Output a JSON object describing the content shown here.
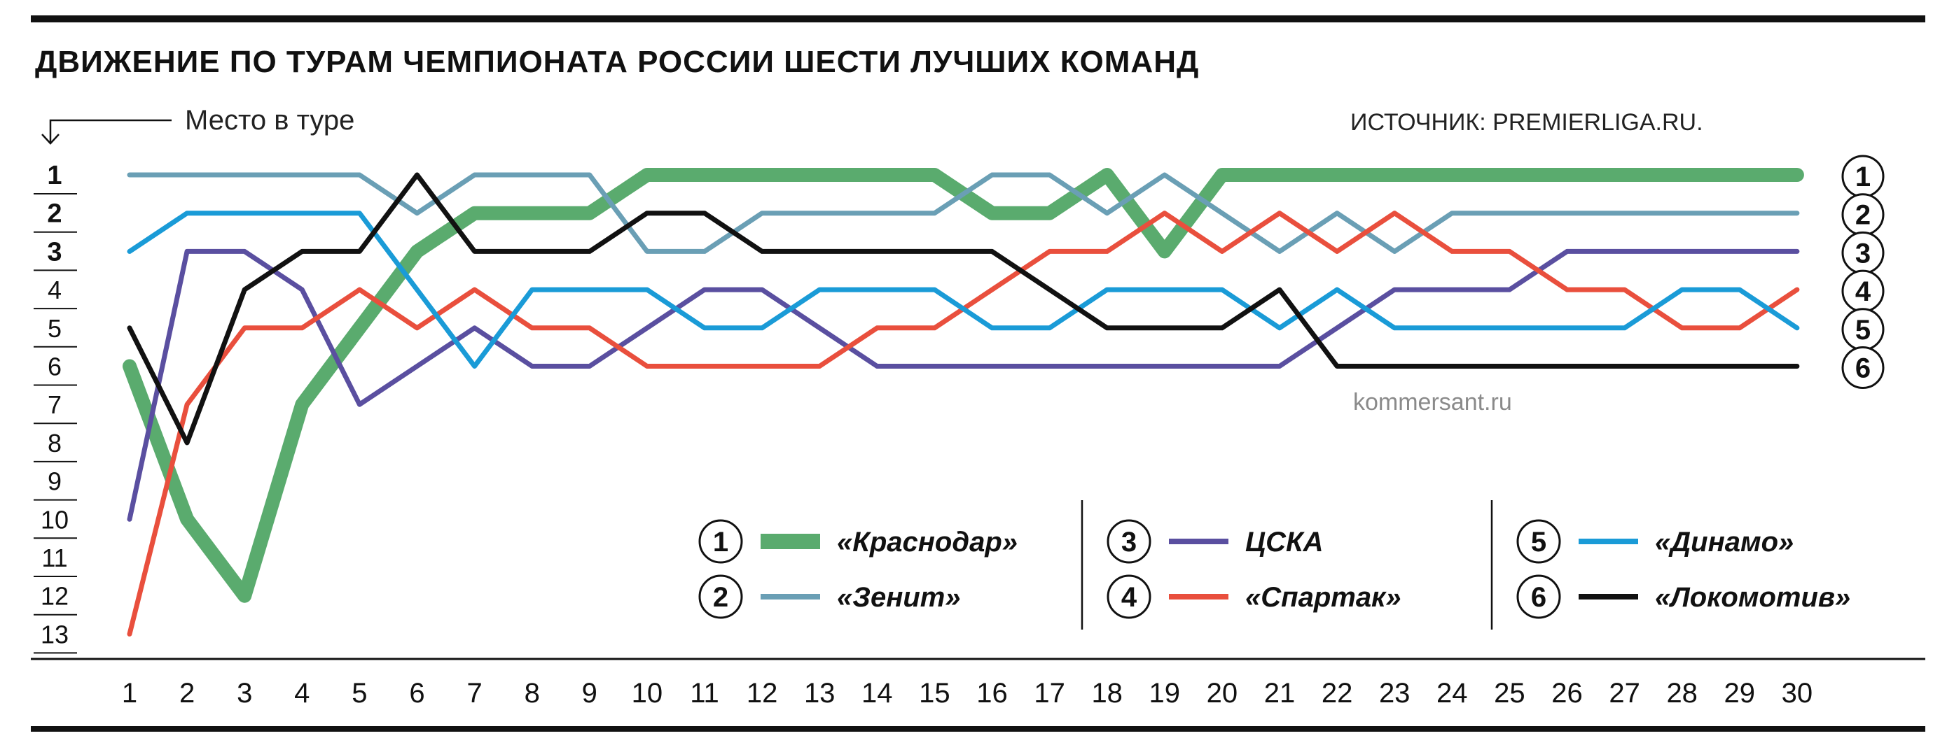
{
  "chart_data": {
    "type": "line",
    "title": "ДВИЖЕНИЕ ПО ТУРАМ ЧЕМПИОНАТА РОССИИ ШЕСТИ ЛУЧШИХ КОМАНД",
    "ylabel": "Место в туре",
    "source": "ИСТОЧНИК: PREMIERLIGA.RU.",
    "watermark": "kommersant.ru",
    "y_reversed": true,
    "ylim": [
      1,
      13
    ],
    "xlim": [
      1,
      30
    ],
    "x": [
      1,
      2,
      3,
      4,
      5,
      6,
      7,
      8,
      9,
      10,
      11,
      12,
      13,
      14,
      15,
      16,
      17,
      18,
      19,
      20,
      21,
      22,
      23,
      24,
      25,
      26,
      27,
      28,
      29,
      30
    ],
    "xticks": [
      "1",
      "2",
      "3",
      "4",
      "5",
      "6",
      "7",
      "8",
      "9",
      "10",
      "11",
      "12",
      "13",
      "14",
      "15",
      "16",
      "17",
      "18",
      "19",
      "20",
      "21",
      "22",
      "23",
      "24",
      "25",
      "26",
      "27",
      "28",
      "29",
      "30"
    ],
    "yticks": [
      "1",
      "2",
      "3",
      "4",
      "5",
      "6",
      "7",
      "8",
      "9",
      "10",
      "11",
      "12",
      "13"
    ],
    "end_labels": [
      "1",
      "2",
      "3",
      "4",
      "5",
      "6"
    ],
    "series": [
      {
        "name": "«Краснодар»",
        "legend_number": "1",
        "color": "#5aab6e",
        "width": 20,
        "values": [
          6,
          10,
          12,
          7,
          5,
          3,
          2,
          2,
          2,
          1,
          1,
          1,
          1,
          1,
          1,
          2,
          2,
          1,
          3,
          1,
          1,
          1,
          1,
          1,
          1,
          1,
          1,
          1,
          1,
          1
        ]
      },
      {
        "name": "«Зенит»",
        "legend_number": "2",
        "color": "#6a9fb5",
        "width": 7,
        "values": [
          1,
          1,
          1,
          1,
          1,
          2,
          1,
          1,
          1,
          3,
          3,
          2,
          2,
          2,
          2,
          1,
          1,
          2,
          1,
          2,
          3,
          2,
          3,
          2,
          2,
          2,
          2,
          2,
          2,
          2
        ]
      },
      {
        "name": "ЦСКА",
        "legend_number": "3",
        "color": "#5a4fa0",
        "width": 7,
        "values": [
          10,
          3,
          3,
          4,
          7,
          6,
          5,
          6,
          6,
          5,
          4,
          4,
          5,
          6,
          6,
          6,
          6,
          6,
          6,
          6,
          6,
          5,
          4,
          4,
          4,
          3,
          3,
          3,
          3,
          3
        ]
      },
      {
        "name": "«Спартак»",
        "legend_number": "4",
        "color": "#e94f3d",
        "width": 7,
        "values": [
          13,
          7,
          5,
          5,
          4,
          5,
          4,
          5,
          5,
          6,
          6,
          6,
          6,
          5,
          5,
          4,
          3,
          3,
          2,
          3,
          2,
          3,
          2,
          3,
          3,
          4,
          4,
          5,
          5,
          4
        ]
      },
      {
        "name": "«Динамо»",
        "legend_number": "5",
        "color": "#1a9bd7",
        "width": 7,
        "values": [
          3,
          2,
          2,
          2,
          2,
          4,
          6,
          4,
          4,
          4,
          5,
          5,
          4,
          4,
          4,
          5,
          5,
          4,
          4,
          4,
          5,
          4,
          5,
          5,
          5,
          5,
          5,
          4,
          4,
          5
        ]
      },
      {
        "name": "«Локомотив»",
        "legend_number": "6",
        "color": "#111111",
        "width": 7,
        "values": [
          5,
          8,
          4,
          3,
          3,
          1,
          3,
          3,
          3,
          2,
          2,
          3,
          3,
          3,
          3,
          3,
          4,
          5,
          5,
          5,
          4,
          6,
          6,
          6,
          6,
          6,
          6,
          6,
          6,
          6
        ]
      }
    ]
  }
}
